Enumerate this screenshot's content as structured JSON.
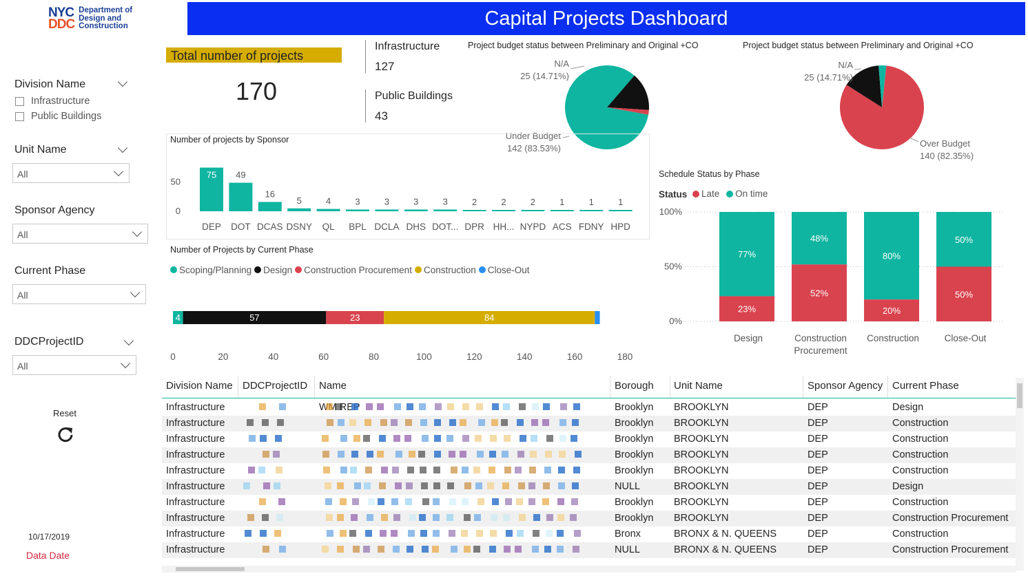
{
  "logo": {
    "line1": "NYC",
    "line2": "DDC",
    "org_l1": "Department of",
    "org_l2": "Design and",
    "org_l3": "Construction"
  },
  "header": {
    "title": "Capital Projects Dashboard"
  },
  "filters": {
    "division": {
      "title": "Division Name",
      "options": [
        "Infrastructure",
        "Public Buildings"
      ]
    },
    "unit": {
      "title": "Unit Name",
      "value": "All"
    },
    "sponsor": {
      "title": "Sponsor Agency",
      "value": "All"
    },
    "phase": {
      "title": "Current Phase",
      "value": "All"
    },
    "project_id": {
      "title": "DDCProjectID",
      "value": "All"
    }
  },
  "reset": {
    "label": "Reset",
    "icon": "refresh-icon"
  },
  "data_date": {
    "value": "10/17/2019",
    "label": "Data Date"
  },
  "kpi": {
    "title": "Total number of projects",
    "value": "170"
  },
  "cards": [
    {
      "label": "Infrastructure",
      "value": "127"
    },
    {
      "label": "Public Buildings",
      "value": "43"
    }
  ],
  "colors": {
    "teal": "#0fb5a0",
    "red": "#d9434e",
    "black": "#111111",
    "gold": "#d5ad00",
    "blue": "#2a8ff0",
    "header_blue": "#0a2ff0"
  },
  "chart_data": [
    {
      "type": "pie",
      "title": "Project budget status between Preliminary and Original +CO",
      "slices": [
        {
          "name": "Under Budget",
          "value": 142,
          "label": "142 (83.53%)",
          "color": "#0fb5a0"
        },
        {
          "name": "N/A",
          "value": 25,
          "label": "25 (14.71%)",
          "color": "#111111"
        },
        {
          "name": "",
          "value": 3,
          "label": "",
          "color": "#d9434e"
        }
      ]
    },
    {
      "type": "pie",
      "title": "Project budget status between Preliminary and Original +CO",
      "slices": [
        {
          "name": "Over Budget",
          "value": 140,
          "label": "140 (82.35%)",
          "color": "#d9434e"
        },
        {
          "name": "N/A",
          "value": 25,
          "label": "25 (14.71%)",
          "color": "#111111"
        },
        {
          "name": "",
          "value": 5,
          "label": "",
          "color": "#0fb5a0"
        }
      ]
    },
    {
      "type": "bar",
      "title": "Number of projects by Sponsor",
      "categories": [
        "DEP",
        "DOT",
        "DCAS",
        "DSNY",
        "QL",
        "BPL",
        "DCLA",
        "DHS",
        "DOT...",
        "DPR",
        "HH...",
        "NYPD",
        "ACS",
        "FDNY",
        "HPD"
      ],
      "values": [
        75,
        49,
        16,
        5,
        4,
        3,
        3,
        3,
        3,
        2,
        2,
        2,
        1,
        1,
        1
      ],
      "yticks": [
        "0",
        "50"
      ],
      "ylim": [
        0,
        80
      ]
    },
    {
      "type": "bar",
      "orientation": "horizontal-stacked",
      "title": "Number of Projects by Current Phase",
      "series": [
        {
          "name": "Scoping/Planning",
          "value": 4,
          "color": "#0fb5a0"
        },
        {
          "name": "Design",
          "value": 57,
          "color": "#111111"
        },
        {
          "name": "Construction Procurement",
          "value": 23,
          "color": "#d9434e"
        },
        {
          "name": "Construction",
          "value": 84,
          "color": "#d5ad00"
        },
        {
          "name": "Close-Out",
          "value": 2,
          "color": "#2a8ff0"
        }
      ],
      "xticks": [
        "0",
        "20",
        "40",
        "60",
        "80",
        "100",
        "120",
        "140",
        "160",
        "180"
      ],
      "xlim": [
        0,
        180
      ]
    },
    {
      "type": "bar",
      "orientation": "100%-stacked",
      "title": "Schedule Status by Phase",
      "legend_title": "Status",
      "categories": [
        "Design",
        "Construction Procurement",
        "Construction",
        "Close-Out"
      ],
      "series": [
        {
          "name": "Late",
          "values": [
            23,
            52,
            20,
            50
          ],
          "labels": [
            "23%",
            "52%",
            "20%",
            "50%"
          ],
          "color": "#d9434e"
        },
        {
          "name": "On time",
          "values": [
            77,
            48,
            80,
            50
          ],
          "labels": [
            "77%",
            "48%",
            "80%",
            "50%"
          ],
          "color": "#0fb5a0"
        }
      ],
      "yticks": [
        "0%",
        "50%",
        "100%"
      ]
    }
  ],
  "table": {
    "columns": [
      "Division Name",
      "DDCProjectID",
      "Name",
      "Borough",
      "Unit Name",
      "Sponsor Agency",
      "Current Phase"
    ],
    "rows": [
      {
        "division": "Infrastructure",
        "name_prefix": "WM REP",
        "borough": "Brooklyn",
        "unit": "BROOKLYN",
        "sponsor": "DEP",
        "phase": "Design"
      },
      {
        "division": "Infrastructure",
        "name_prefix": "",
        "borough": "Brooklyn",
        "unit": "BROOKLYN",
        "sponsor": "DEP",
        "phase": "Construction"
      },
      {
        "division": "Infrastructure",
        "name_prefix": "",
        "borough": "Brooklyn",
        "unit": "BROOKLYN",
        "sponsor": "DEP",
        "phase": "Construction"
      },
      {
        "division": "Infrastructure",
        "name_prefix": "",
        "borough": "Brooklyn",
        "unit": "BROOKLYN",
        "sponsor": "DEP",
        "phase": "Construction"
      },
      {
        "division": "Infrastructure",
        "name_prefix": "",
        "borough": "Brooklyn",
        "unit": "BROOKLYN",
        "sponsor": "DEP",
        "phase": "Construction"
      },
      {
        "division": "Infrastructure",
        "name_prefix": "",
        "borough": "NULL",
        "unit": "BROOKLYN",
        "sponsor": "DEP",
        "phase": "Design"
      },
      {
        "division": "Infrastructure",
        "name_prefix": "",
        "borough": "Brooklyn",
        "unit": "BROOKLYN",
        "sponsor": "DEP",
        "phase": "Construction"
      },
      {
        "division": "Infrastructure",
        "name_prefix": "",
        "borough": "Brooklyn",
        "unit": "BROOKLYN",
        "sponsor": "DEP",
        "phase": "Construction Procurement"
      },
      {
        "division": "Infrastructure",
        "name_prefix": "",
        "borough": "Bronx",
        "unit": "BRONX & N. QUEENS",
        "sponsor": "DEP",
        "phase": "Construction"
      },
      {
        "division": "Infrastructure",
        "name_prefix": "",
        "borough": "NULL",
        "unit": "BRONX & N. QUEENS",
        "sponsor": "DEP",
        "phase": "Construction Procurement"
      }
    ]
  }
}
